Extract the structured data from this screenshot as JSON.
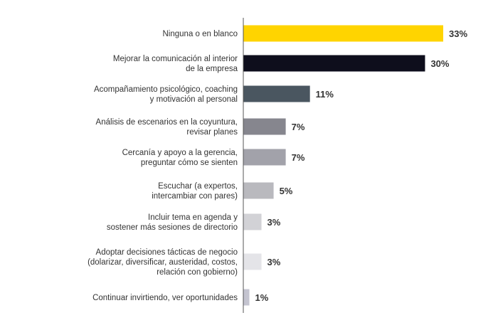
{
  "chart_data": {
    "type": "bar",
    "orientation": "horizontal",
    "categories": [
      [
        "Ninguna o en blanco"
      ],
      [
        "Mejorar la comunicación al interior",
        "de la empresa"
      ],
      [
        "Acompañamiento psicológico, coaching",
        "y motivación al personal"
      ],
      [
        "Análisis de escenarios en la coyuntura,",
        "revisar planes"
      ],
      [
        "Cercanía y apoyo a la gerencia,",
        "preguntar cómo se sienten"
      ],
      [
        "Escuchar (a expertos,",
        "intercambiar con pares)"
      ],
      [
        "Incluir tema en agenda y",
        "sostener más sesiones de directorio"
      ],
      [
        "Adoptar decisiones tácticas de negocio",
        "(dolarizar, diversificar, austeridad, costos,",
        "relación con gobierno)"
      ],
      [
        "Continuar invirtiendo, ver oportunidades"
      ]
    ],
    "values": [
      33,
      30,
      11,
      7,
      7,
      5,
      3,
      3,
      1
    ],
    "value_labels": [
      "33%",
      "30%",
      "11%",
      "7%",
      "7%",
      "5%",
      "3%",
      "3%",
      "1%"
    ],
    "colors": [
      "#ffd400",
      "#0e0e1c",
      "#4a5660",
      "#86868e",
      "#a2a2aa",
      "#b9b9be",
      "#d2d2d6",
      "#e4e4e8",
      "#c4c4d0"
    ],
    "xlim": [
      0,
      33
    ],
    "axis_line_color": "#555555"
  }
}
